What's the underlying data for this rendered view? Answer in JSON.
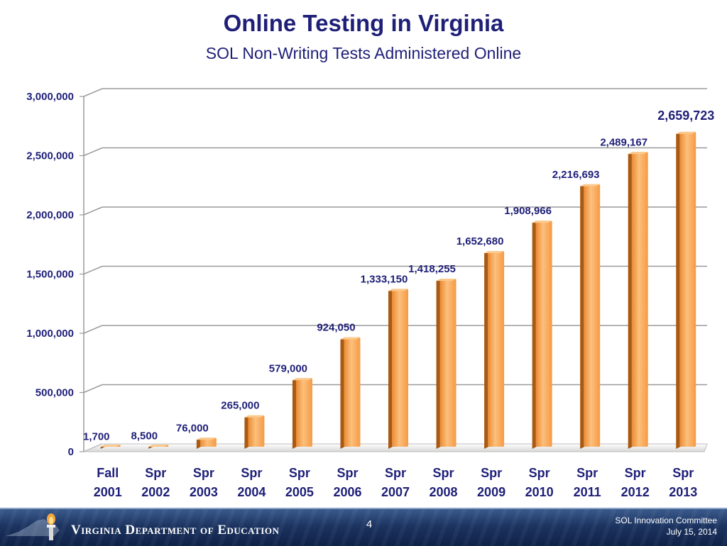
{
  "slide": {
    "title": "Online Testing in Virginia",
    "subtitle": "SOL Non-Writing Tests Administered Online",
    "page_number": "4",
    "footer_org": "Virginia Department of Education",
    "footer_committee": "SOL Innovation Committee",
    "footer_date": "July 15, 2014"
  },
  "colors": {
    "bar_face": "#f7a04d",
    "bar_dark": "#a85a14",
    "bar_light": "#fcc98d",
    "label": "#1f1f78",
    "axis_text": "#1f1f78",
    "grid": "#9a9a9a"
  },
  "chart_data": {
    "type": "bar",
    "title": "Online Testing in Virginia",
    "subtitle": "SOL Non-Writing Tests Administered Online",
    "categories": [
      [
        "Fall",
        "2001"
      ],
      [
        "Spr",
        "2002"
      ],
      [
        "Spr",
        "2003"
      ],
      [
        "Spr",
        "2004"
      ],
      [
        "Spr",
        "2005"
      ],
      [
        "Spr",
        "2006"
      ],
      [
        "Spr",
        "2007"
      ],
      [
        "Spr",
        "2008"
      ],
      [
        "Spr",
        "2009"
      ],
      [
        "Spr",
        "2010"
      ],
      [
        "Spr",
        "2011"
      ],
      [
        "Spr",
        "2012"
      ],
      [
        "Spr",
        "2013"
      ]
    ],
    "values": [
      1700,
      8500,
      76000,
      265000,
      579000,
      924050,
      1333150,
      1418255,
      1652680,
      1908966,
      2216693,
      2489167,
      2659723
    ],
    "value_labels": [
      "1,700",
      "8,500",
      "76,000",
      "265,000",
      "579,000",
      "924,050",
      "1,333,150",
      "1,418,255",
      "1,652,680",
      "1,908,966",
      "2,216,693",
      "2,489,167",
      "2,659,723"
    ],
    "y_ticks": [
      0,
      500000,
      1000000,
      1500000,
      2000000,
      2500000,
      3000000
    ],
    "y_tick_labels": [
      "0",
      "500,000",
      "1,000,000",
      "1,500,000",
      "2,000,000",
      "2,500,000",
      "3,000,000"
    ],
    "ylim": [
      0,
      3000000
    ],
    "xlabel": "",
    "ylabel": "",
    "grid": true,
    "legend": "none"
  }
}
